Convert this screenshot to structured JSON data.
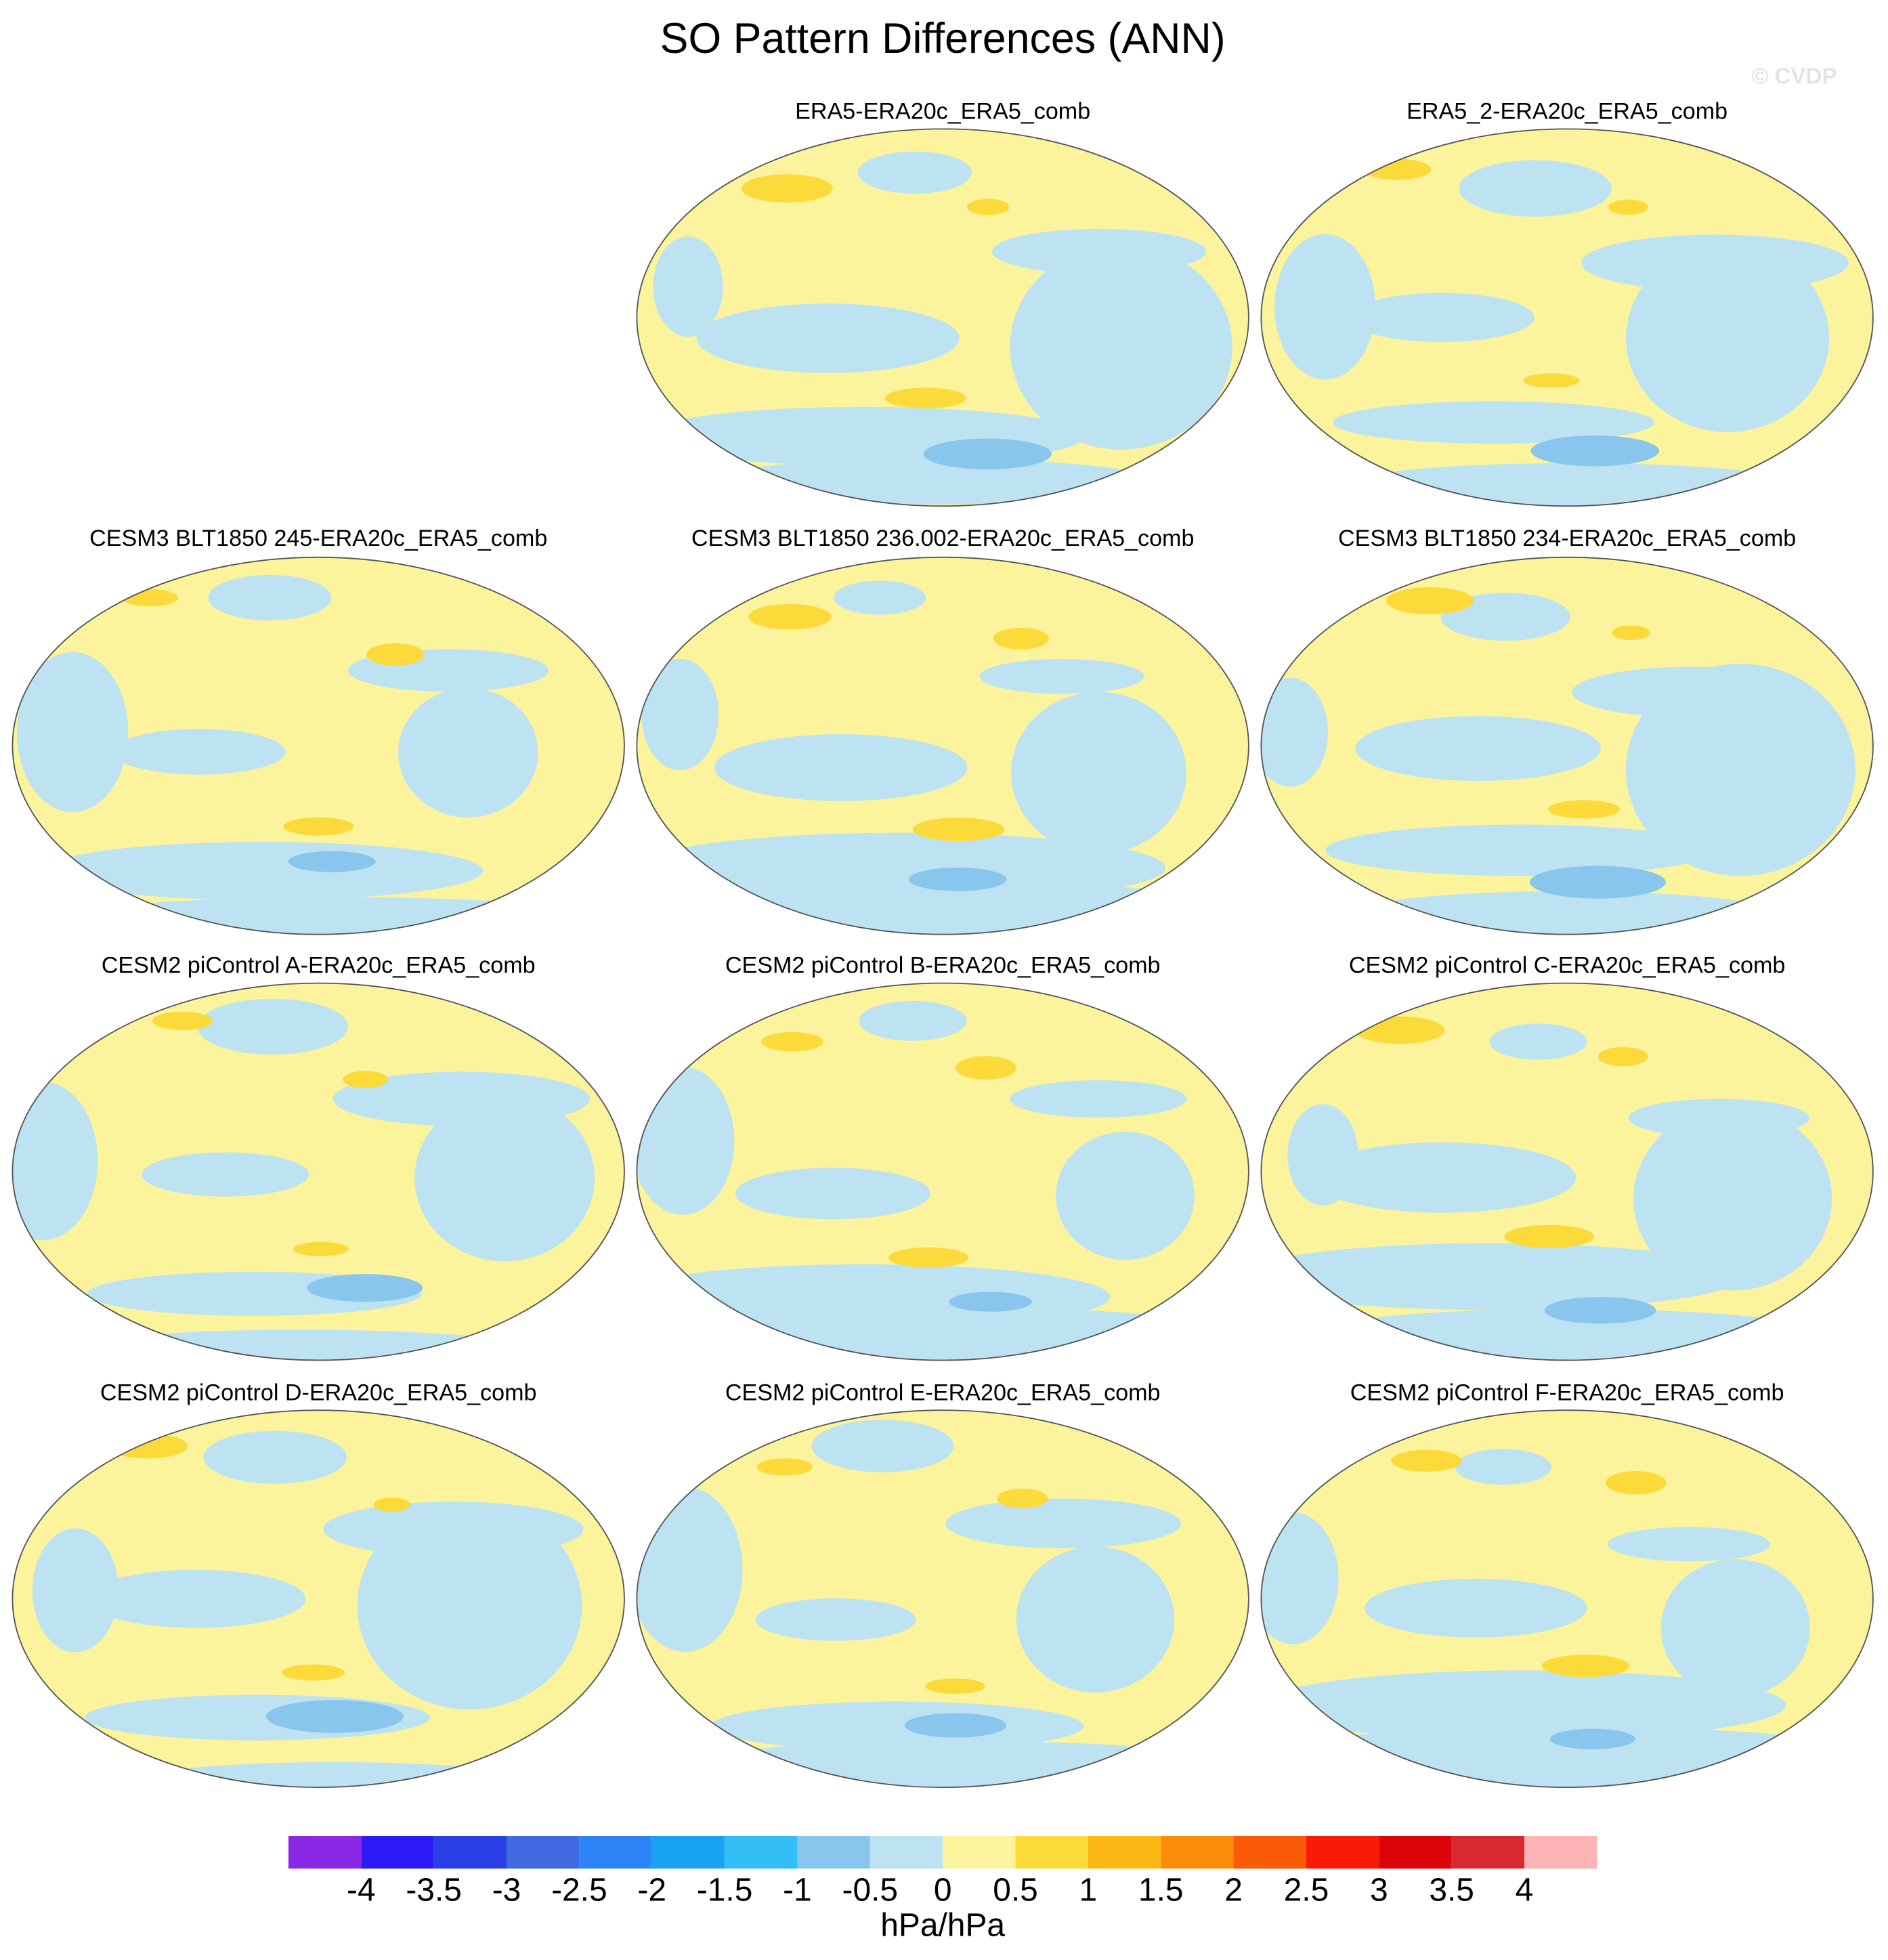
{
  "chart_data": {
    "type": "map",
    "title": "SO Pattern Differences (ANN)",
    "watermark": "© CVDP",
    "panels": [
      {
        "title": "ERA5-ERA20c_ERA5_comb"
      },
      {
        "title": "ERA5_2-ERA20c_ERA5_comb"
      },
      {
        "title": "CESM3 BLT1850 245-ERA20c_ERA5_comb"
      },
      {
        "title": "CESM3 BLT1850 236.002-ERA20c_ERA5_comb"
      },
      {
        "title": "CESM3 BLT1850 234-ERA20c_ERA5_comb"
      },
      {
        "title": "CESM2 piControl A-ERA20c_ERA5_comb"
      },
      {
        "title": "CESM2 piControl B-ERA20c_ERA5_comb"
      },
      {
        "title": "CESM2 piControl C-ERA20c_ERA5_comb"
      },
      {
        "title": "CESM2 piControl D-ERA20c_ERA5_comb"
      },
      {
        "title": "CESM2 piControl E-ERA20c_ERA5_comb"
      },
      {
        "title": "CESM2 piControl F-ERA20c_ERA5_comb"
      }
    ],
    "colorbar": {
      "label": "hPa/hPa",
      "levels": [
        -4,
        -3.5,
        -3,
        -2.5,
        -2,
        -1.5,
        -1,
        -0.5,
        0,
        0.5,
        1,
        1.5,
        2,
        2.5,
        3,
        3.5,
        4
      ],
      "colors": [
        "#8b28e8",
        "#2b1af7",
        "#2a3ee6",
        "#4169e1",
        "#2d84f7",
        "#1aa3f5",
        "#33bff6",
        "#88c6ee",
        "#bde2f1",
        "#fbf49c",
        "#fcda3a",
        "#fcb814",
        "#fc8c0c",
        "#fb5a06",
        "#fb1a08",
        "#dc0408",
        "#d62a30",
        "#fdb4b6"
      ]
    }
  }
}
